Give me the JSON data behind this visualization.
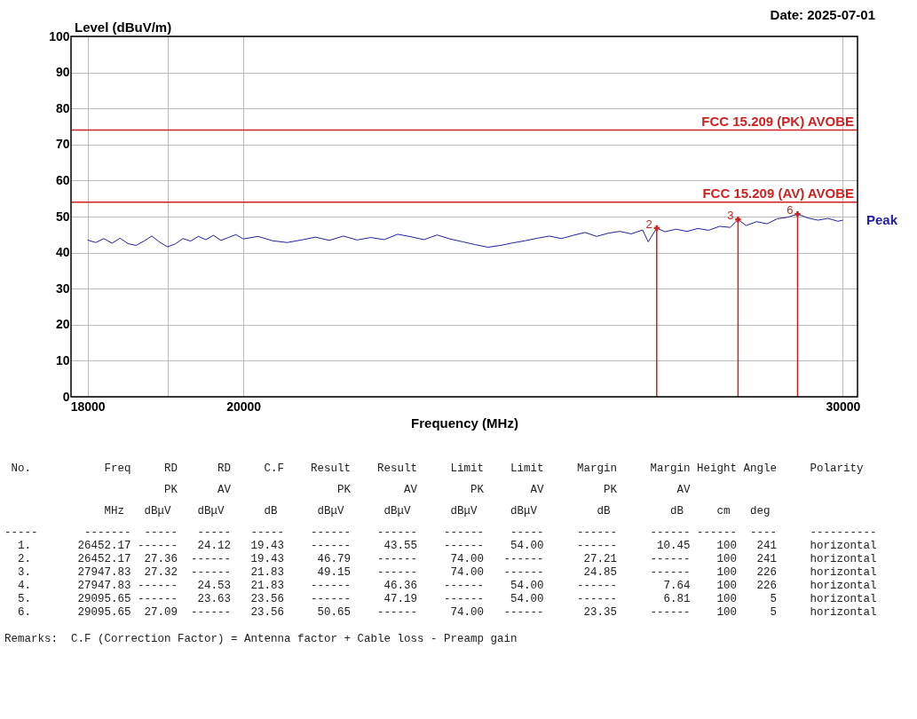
{
  "chart_data": {
    "type": "line",
    "xlabel": "Frequency (MHz)",
    "ylabel": "Level (dBuV/m)",
    "log": "x",
    "xlim": [
      17800,
      30300
    ],
    "xticks": [
      18000,
      {
        "value": 19000,
        "label": null
      },
      20000,
      30000
    ],
    "ylim": [
      0,
      100
    ],
    "yticks": [
      0,
      10,
      20,
      30,
      40,
      50,
      60,
      70,
      80,
      90,
      100
    ],
    "grid": true,
    "legend": false,
    "line_style": "solid",
    "series": [
      {
        "name": "Peak",
        "color": "#2020a0",
        "x": [
          18000,
          18100,
          18200,
          18300,
          18400,
          18500,
          18600,
          18700,
          18800,
          18900,
          19000,
          19100,
          19200,
          19300,
          19400,
          19500,
          19600,
          19700,
          19800,
          19900,
          20000,
          20200,
          20400,
          20600,
          20800,
          21000,
          21200,
          21400,
          21600,
          21800,
          22000,
          22200,
          22400,
          22600,
          22800,
          23000,
          23200,
          23400,
          23600,
          23800,
          24000,
          24200,
          24400,
          24600,
          24800,
          25000,
          25200,
          25400,
          25600,
          25800,
          26000,
          26200,
          26300,
          26452.17,
          26600,
          26800,
          27000,
          27200,
          27400,
          27600,
          27800,
          27947.83,
          28100,
          28300,
          28500,
          28700,
          28900,
          29095.65,
          29300,
          29500,
          29700,
          29900,
          30000
        ],
        "values": [
          43.5,
          42.8,
          43.9,
          42.6,
          44.0,
          42.5,
          42.0,
          43.2,
          44.6,
          42.9,
          41.6,
          42.4,
          43.9,
          43.2,
          44.5,
          43.6,
          44.8,
          43.4,
          44.2,
          45.0,
          43.8,
          44.5,
          43.3,
          42.8,
          43.5,
          44.3,
          43.4,
          44.6,
          43.5,
          44.2,
          43.6,
          45.1,
          44.4,
          43.6,
          44.9,
          43.8,
          43.0,
          42.2,
          41.5,
          42.0,
          42.7,
          43.3,
          44.0,
          44.6,
          43.9,
          44.8,
          45.6,
          44.5,
          45.4,
          45.9,
          45.2,
          46.3,
          43.0,
          46.8,
          45.8,
          46.5,
          45.9,
          46.7,
          46.2,
          47.3,
          47.0,
          49.2,
          47.5,
          48.6,
          48.0,
          49.4,
          49.8,
          50.7,
          49.6,
          49.0,
          49.5,
          48.7,
          49.0
        ]
      },
      {
        "type": "lollipop",
        "color": "#d02020",
        "x": [
          26452.17,
          27947.83,
          29095.65
        ],
        "values": [
          46.8,
          49.2,
          50.7
        ]
      }
    ],
    "ref_lines": [
      {
        "axis": "y",
        "value": 74,
        "label": "FCC 15.209 (PK) AVOBE",
        "color": "#d02020"
      },
      {
        "axis": "y",
        "value": 54,
        "label": "FCC 15.209 (AV) AVOBE",
        "color": "#d02020"
      }
    ],
    "annotations": [
      {
        "text": "2",
        "x": 26452.17,
        "y": 46.8
      },
      {
        "text": "3",
        "x": 27947.83,
        "y": 49.2
      },
      {
        "text": "6",
        "x": 29095.65,
        "y": 50.7
      },
      "Date: 2025-07-01",
      " No.           Freq     RD      RD     C.F    Result    Result     Limit    Limit     Margin     Margin Height Angle     Polarity",
      "                        PK      AV                PK        AV        PK       AV         PK         AV",
      "               MHz   dBμV    dBμV      dB      dBμV      dBμV      dBμV     dBμV         dB         dB     cm   deg",
      "-----       -------  -----   -----   -----    ------    ------    ------    -----     ------     ------ ------  ----     ----------",
      "  1.       26452.17 ------   24.12   19.43    ------     43.55    ------    54.00     ------      10.45    100   241     horizontal",
      "  2.       26452.17  27.36  ------   19.43     46.79    ------     74.00   ------      27.21     ------    100   241     horizontal",
      "  3.       27947.83  27.32  ------   21.83     49.15    ------     74.00   ------      24.85     ------    100   226     horizontal",
      "  4.       27947.83 ------   24.53   21.83    ------     46.36    ------    54.00     ------       7.64    100   226     horizontal",
      "  5.       29095.65 ------   23.63   23.56    ------     47.19    ------    54.00     ------       6.81    100     5     horizontal",
      "  6.       29095.65  27.09  ------   23.56     50.65    ------     74.00   ------      23.35     ------    100     5     horizontal",
      "Remarks:  C.F (Correction Factor) = Antenna factor + Cable loss - Preamp gain"
    ]
  }
}
